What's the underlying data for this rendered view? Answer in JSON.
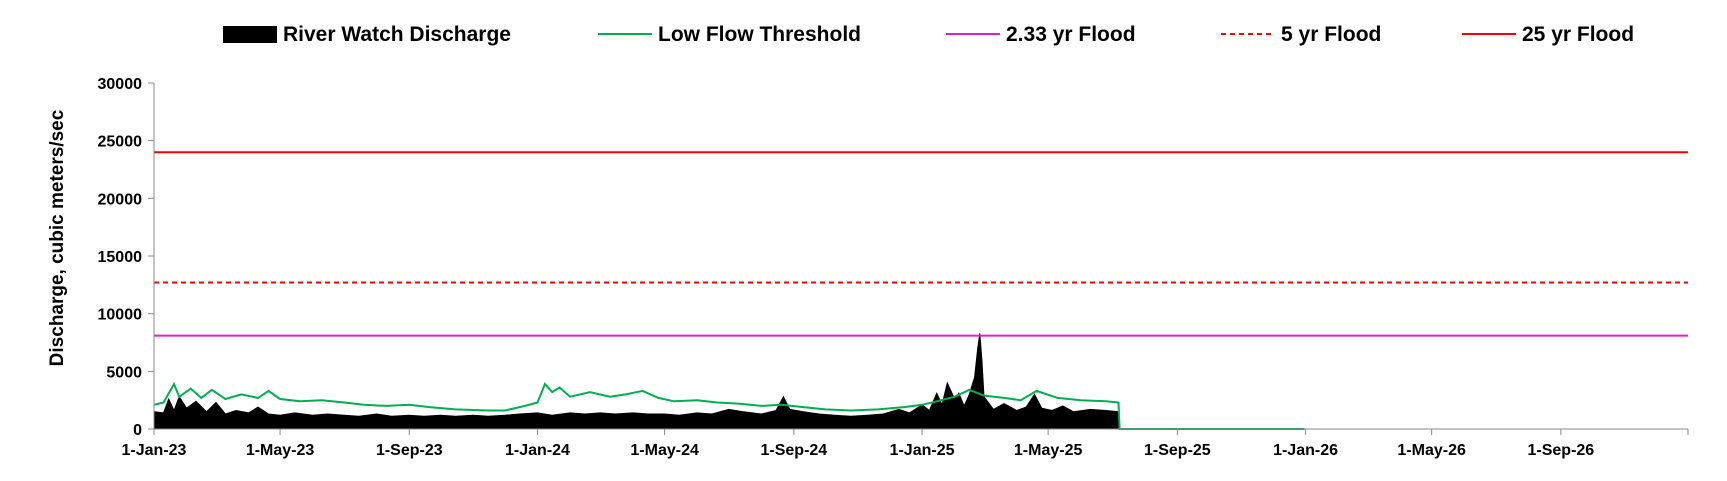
{
  "chart_data": {
    "type": "area",
    "title": "",
    "xlabel": "",
    "ylabel": "Discharge, cubic meters/sec",
    "ylim": [
      0,
      30000
    ],
    "y_ticks": [
      "0",
      "5000",
      "10000",
      "15000",
      "20000",
      "25000",
      "30000"
    ],
    "xlim": [
      "2023-01-01",
      "2026-12-31"
    ],
    "x_ticks": [
      {
        "date": "2023-01-01",
        "label": "1-Jan-23"
      },
      {
        "date": "2023-05-01",
        "label": "1-May-23"
      },
      {
        "date": "2023-09-01",
        "label": "1-Sep-23"
      },
      {
        "date": "2024-01-01",
        "label": "1-Jan-24"
      },
      {
        "date": "2024-05-01",
        "label": "1-May-24"
      },
      {
        "date": "2024-09-01",
        "label": "1-Sep-24"
      },
      {
        "date": "2025-01-01",
        "label": "1-Jan-25"
      },
      {
        "date": "2025-05-01",
        "label": "1-May-25"
      },
      {
        "date": "2025-09-01",
        "label": "1-Sep-25"
      },
      {
        "date": "2026-01-01",
        "label": "1-Jan-26"
      },
      {
        "date": "2026-05-01",
        "label": "1-May-26"
      },
      {
        "date": "2026-09-01",
        "label": "1-Sep-26"
      }
    ],
    "grid": false,
    "legend_position": "top",
    "series": [
      {
        "name": "River Watch Discharge",
        "kind": "area",
        "color": "#000000",
        "points": [
          [
            "2023-01-01",
            1500
          ],
          [
            "2023-01-10",
            1400
          ],
          [
            "2023-01-15",
            2600
          ],
          [
            "2023-01-20",
            1600
          ],
          [
            "2023-01-25",
            2800
          ],
          [
            "2023-02-01",
            1800
          ],
          [
            "2023-02-10",
            2400
          ],
          [
            "2023-02-20",
            1500
          ],
          [
            "2023-03-01",
            2300
          ],
          [
            "2023-03-10",
            1300
          ],
          [
            "2023-03-20",
            1600
          ],
          [
            "2023-04-01",
            1400
          ],
          [
            "2023-04-10",
            1900
          ],
          [
            "2023-04-20",
            1300
          ],
          [
            "2023-05-01",
            1200
          ],
          [
            "2023-05-15",
            1400
          ],
          [
            "2023-06-01",
            1200
          ],
          [
            "2023-06-15",
            1300
          ],
          [
            "2023-07-01",
            1200
          ],
          [
            "2023-07-15",
            1100
          ],
          [
            "2023-08-01",
            1300
          ],
          [
            "2023-08-15",
            1100
          ],
          [
            "2023-09-01",
            1200
          ],
          [
            "2023-09-15",
            1100
          ],
          [
            "2023-10-01",
            1200
          ],
          [
            "2023-10-15",
            1100
          ],
          [
            "2023-11-01",
            1200
          ],
          [
            "2023-11-15",
            1100
          ],
          [
            "2023-12-01",
            1200
          ],
          [
            "2023-12-15",
            1300
          ],
          [
            "2024-01-01",
            1400
          ],
          [
            "2024-01-15",
            1200
          ],
          [
            "2024-02-01",
            1400
          ],
          [
            "2024-02-15",
            1300
          ],
          [
            "2024-03-01",
            1400
          ],
          [
            "2024-03-15",
            1300
          ],
          [
            "2024-04-01",
            1400
          ],
          [
            "2024-04-15",
            1300
          ],
          [
            "2024-05-01",
            1300
          ],
          [
            "2024-05-15",
            1200
          ],
          [
            "2024-06-01",
            1400
          ],
          [
            "2024-06-15",
            1300
          ],
          [
            "2024-07-01",
            1700
          ],
          [
            "2024-07-15",
            1500
          ],
          [
            "2024-08-01",
            1300
          ],
          [
            "2024-08-15",
            1600
          ],
          [
            "2024-08-22",
            2800
          ],
          [
            "2024-08-28",
            1700
          ],
          [
            "2024-09-10",
            1500
          ],
          [
            "2024-09-25",
            1300
          ],
          [
            "2024-10-10",
            1200
          ],
          [
            "2024-10-25",
            1100
          ],
          [
            "2024-11-10",
            1200
          ],
          [
            "2024-11-25",
            1300
          ],
          [
            "2024-12-10",
            1700
          ],
          [
            "2024-12-20",
            1400
          ],
          [
            "2025-01-01",
            2100
          ],
          [
            "2025-01-08",
            1600
          ],
          [
            "2025-01-15",
            3100
          ],
          [
            "2025-01-20",
            2100
          ],
          [
            "2025-01-25",
            4000
          ],
          [
            "2025-02-01",
            2600
          ],
          [
            "2025-02-05",
            3100
          ],
          [
            "2025-02-10",
            2000
          ],
          [
            "2025-02-15",
            3000
          ],
          [
            "2025-02-20",
            4500
          ],
          [
            "2025-02-23",
            7000
          ],
          [
            "2025-02-25",
            8300
          ],
          [
            "2025-02-27",
            6000
          ],
          [
            "2025-03-01",
            2800
          ],
          [
            "2025-03-10",
            1700
          ],
          [
            "2025-03-20",
            2200
          ],
          [
            "2025-04-01",
            1600
          ],
          [
            "2025-04-10",
            1900
          ],
          [
            "2025-04-18",
            3000
          ],
          [
            "2025-04-25",
            1800
          ],
          [
            "2025-05-05",
            1600
          ],
          [
            "2025-05-15",
            2000
          ],
          [
            "2025-05-25",
            1500
          ],
          [
            "2025-06-10",
            1700
          ],
          [
            "2025-06-25",
            1600
          ],
          [
            "2025-07-07",
            1500
          ],
          [
            "2025-07-08",
            0
          ]
        ]
      },
      {
        "name": "Low Flow Threshold",
        "kind": "line",
        "color": "#00b050",
        "points": [
          [
            "2023-01-01",
            2100
          ],
          [
            "2023-01-10",
            2300
          ],
          [
            "2023-01-20",
            3900
          ],
          [
            "2023-01-25",
            2800
          ],
          [
            "2023-02-05",
            3500
          ],
          [
            "2023-02-15",
            2700
          ],
          [
            "2023-02-25",
            3400
          ],
          [
            "2023-03-10",
            2600
          ],
          [
            "2023-03-25",
            3000
          ],
          [
            "2023-04-10",
            2700
          ],
          [
            "2023-04-20",
            3300
          ],
          [
            "2023-05-01",
            2600
          ],
          [
            "2023-05-20",
            2400
          ],
          [
            "2023-06-10",
            2500
          ],
          [
            "2023-07-01",
            2300
          ],
          [
            "2023-07-20",
            2100
          ],
          [
            "2023-08-10",
            2000
          ],
          [
            "2023-09-01",
            2100
          ],
          [
            "2023-09-20",
            1900
          ],
          [
            "2023-10-15",
            1700
          ],
          [
            "2023-11-15",
            1600
          ],
          [
            "2023-12-01",
            1600
          ],
          [
            "2023-12-20",
            2000
          ],
          [
            "2024-01-01",
            2300
          ],
          [
            "2024-01-08",
            3900
          ],
          [
            "2024-01-15",
            3200
          ],
          [
            "2024-01-22",
            3600
          ],
          [
            "2024-02-01",
            2800
          ],
          [
            "2024-02-20",
            3200
          ],
          [
            "2024-03-10",
            2800
          ],
          [
            "2024-03-25",
            3000
          ],
          [
            "2024-04-10",
            3300
          ],
          [
            "2024-04-25",
            2700
          ],
          [
            "2024-05-10",
            2400
          ],
          [
            "2024-06-01",
            2500
          ],
          [
            "2024-06-20",
            2300
          ],
          [
            "2024-07-10",
            2200
          ],
          [
            "2024-08-01",
            2000
          ],
          [
            "2024-08-20",
            2100
          ],
          [
            "2024-09-10",
            1900
          ],
          [
            "2024-10-01",
            1700
          ],
          [
            "2024-10-25",
            1600
          ],
          [
            "2024-11-20",
            1700
          ],
          [
            "2024-12-15",
            1900
          ],
          [
            "2025-01-01",
            2100
          ],
          [
            "2025-01-15",
            2400
          ],
          [
            "2025-02-01",
            2800
          ],
          [
            "2025-02-15",
            3400
          ],
          [
            "2025-03-01",
            2900
          ],
          [
            "2025-03-20",
            2700
          ],
          [
            "2025-04-05",
            2500
          ],
          [
            "2025-04-20",
            3300
          ],
          [
            "2025-05-10",
            2700
          ],
          [
            "2025-06-01",
            2500
          ],
          [
            "2025-06-25",
            2400
          ],
          [
            "2025-07-07",
            2300
          ],
          [
            "2025-07-08",
            0
          ],
          [
            "2025-12-31",
            0
          ]
        ]
      },
      {
        "name": "2.33 yr Flood",
        "kind": "hline",
        "color": "#e020d0",
        "dash": false,
        "value": 8100
      },
      {
        "name": "5 yr Flood",
        "kind": "hline",
        "color": "#ff0000",
        "dash": true,
        "value": 12700
      },
      {
        "name": "25 yr Flood",
        "kind": "hline",
        "color": "#ff0000",
        "dash": false,
        "value": 24000
      }
    ]
  }
}
